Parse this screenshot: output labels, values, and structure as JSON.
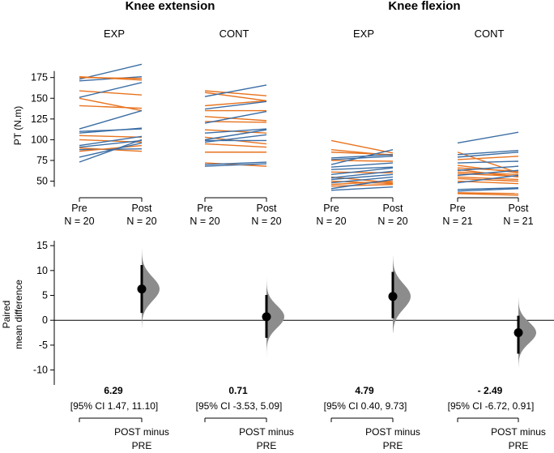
{
  "chart_data": {
    "type": "estimation-plot",
    "panels": [
      {
        "title": "Knee extension",
        "groups": [
          {
            "label": "EXP",
            "ticks": [
              "Pre",
              "Post"
            ],
            "n_labels": [
              "N = 20",
              "N = 20"
            ],
            "lines": [
              {
                "pre": 173,
                "post": 191,
                "color": "#3b6ea5"
              },
              {
                "pre": 171,
                "post": 176,
                "color": "#3b6ea5"
              },
              {
                "pre": 176,
                "post": 172,
                "color": "#e8731f"
              },
              {
                "pre": 175,
                "post": 174,
                "color": "#e8731f"
              },
              {
                "pre": 159,
                "post": 154,
                "color": "#e8731f"
              },
              {
                "pre": 151,
                "post": 169,
                "color": "#3b6ea5"
              },
              {
                "pre": 150,
                "post": 135,
                "color": "#e8731f"
              },
              {
                "pre": 141,
                "post": 138,
                "color": "#e8731f"
              },
              {
                "pre": 113,
                "post": 135,
                "color": "#3b6ea5"
              },
              {
                "pre": 110,
                "post": 113,
                "color": "#3b6ea5"
              },
              {
                "pre": 108,
                "post": 114,
                "color": "#3b6ea5"
              },
              {
                "pre": 105,
                "post": 103,
                "color": "#e8731f"
              },
              {
                "pre": 100,
                "post": 97,
                "color": "#e8731f"
              },
              {
                "pre": 93,
                "post": 104,
                "color": "#3b6ea5"
              },
              {
                "pre": 91,
                "post": 99,
                "color": "#3b6ea5"
              },
              {
                "pre": 90,
                "post": 86,
                "color": "#e8731f"
              },
              {
                "pre": 88,
                "post": 89,
                "color": "#3b6ea5"
              },
              {
                "pre": 86,
                "post": 93,
                "color": "#e8731f"
              },
              {
                "pre": 79,
                "post": 96,
                "color": "#3b6ea5"
              },
              {
                "pre": 73,
                "post": 100,
                "color": "#3b6ea5"
              }
            ]
          },
          {
            "label": "CONT",
            "ticks": [
              "Pre",
              "Post"
            ],
            "n_labels": [
              "N = 20",
              "N = 20"
            ],
            "lines": [
              {
                "pre": 159,
                "post": 153,
                "color": "#e8731f"
              },
              {
                "pre": 157,
                "post": 147,
                "color": "#e8731f"
              },
              {
                "pre": 152,
                "post": 166,
                "color": "#3b6ea5"
              },
              {
                "pre": 141,
                "post": 147,
                "color": "#e8731f"
              },
              {
                "pre": 137,
                "post": 146,
                "color": "#3b6ea5"
              },
              {
                "pre": 135,
                "post": 135,
                "color": "#e8731f"
              },
              {
                "pre": 128,
                "post": 123,
                "color": "#e8731f"
              },
              {
                "pre": 122,
                "post": 121,
                "color": "#e8731f"
              },
              {
                "pre": 120,
                "post": 134,
                "color": "#3b6ea5"
              },
              {
                "pre": 112,
                "post": 108,
                "color": "#e8731f"
              },
              {
                "pre": 108,
                "post": 113,
                "color": "#3b6ea5"
              },
              {
                "pre": 103,
                "post": 95,
                "color": "#e8731f"
              },
              {
                "pre": 100,
                "post": 112,
                "color": "#3b6ea5"
              },
              {
                "pre": 99,
                "post": 99,
                "color": "#3b6ea5"
              },
              {
                "pre": 97,
                "post": 106,
                "color": "#3b6ea5"
              },
              {
                "pre": 95,
                "post": 91,
                "color": "#e8731f"
              },
              {
                "pre": 85,
                "post": 85,
                "color": "#e8731f"
              },
              {
                "pre": 72,
                "post": 68,
                "color": "#e8731f"
              },
              {
                "pre": 70,
                "post": 73,
                "color": "#3b6ea5"
              },
              {
                "pre": 68,
                "post": 71,
                "color": "#3b6ea5"
              }
            ]
          }
        ]
      },
      {
        "title": "Knee flexion",
        "groups": [
          {
            "label": "EXP",
            "ticks": [
              "Pre",
              "Post"
            ],
            "n_labels": [
              "N = 20",
              "N = 20"
            ],
            "lines": [
              {
                "pre": 99,
                "post": 84,
                "color": "#e8731f"
              },
              {
                "pre": 88,
                "post": 81,
                "color": "#e8731f"
              },
              {
                "pre": 85,
                "post": 82,
                "color": "#e8731f"
              },
              {
                "pre": 78,
                "post": 82,
                "color": "#3b6ea5"
              },
              {
                "pre": 76,
                "post": 80,
                "color": "#3b6ea5"
              },
              {
                "pre": 75,
                "post": 74,
                "color": "#e8731f"
              },
              {
                "pre": 70,
                "post": 88,
                "color": "#3b6ea5"
              },
              {
                "pre": 67,
                "post": 72,
                "color": "#3b6ea5"
              },
              {
                "pre": 64,
                "post": 67,
                "color": "#3b6ea5"
              },
              {
                "pre": 61,
                "post": 60,
                "color": "#e8731f"
              },
              {
                "pre": 58,
                "post": 66,
                "color": "#3b6ea5"
              },
              {
                "pre": 55,
                "post": 48,
                "color": "#e8731f"
              },
              {
                "pre": 54,
                "post": 62,
                "color": "#3b6ea5"
              },
              {
                "pre": 52,
                "post": 58,
                "color": "#3b6ea5"
              },
              {
                "pre": 50,
                "post": 47,
                "color": "#e8731f"
              },
              {
                "pre": 48,
                "post": 55,
                "color": "#3b6ea5"
              },
              {
                "pre": 46,
                "post": 50,
                "color": "#e8731f"
              },
              {
                "pre": 44,
                "post": 46,
                "color": "#e8731f"
              },
              {
                "pre": 41,
                "post": 52,
                "color": "#3b6ea5"
              },
              {
                "pre": 39,
                "post": 43,
                "color": "#3b6ea5"
              }
            ]
          },
          {
            "label": "CONT",
            "ticks": [
              "Pre",
              "Post"
            ],
            "n_labels": [
              "N = 21",
              "N = 21"
            ],
            "lines": [
              {
                "pre": 96,
                "post": 109,
                "color": "#3b6ea5"
              },
              {
                "pre": 85,
                "post": 60,
                "color": "#e8731f"
              },
              {
                "pre": 82,
                "post": 87,
                "color": "#3b6ea5"
              },
              {
                "pre": 79,
                "post": 85,
                "color": "#3b6ea5"
              },
              {
                "pre": 76,
                "post": 80,
                "color": "#e8731f"
              },
              {
                "pre": 72,
                "post": 74,
                "color": "#3b6ea5"
              },
              {
                "pre": 69,
                "post": 60,
                "color": "#e8731f"
              },
              {
                "pre": 66,
                "post": 62,
                "color": "#e8731f"
              },
              {
                "pre": 64,
                "post": 55,
                "color": "#e8731f"
              },
              {
                "pre": 63,
                "post": 68,
                "color": "#3b6ea5"
              },
              {
                "pre": 61,
                "post": 58,
                "color": "#e8731f"
              },
              {
                "pre": 59,
                "post": 56,
                "color": "#e8731f"
              },
              {
                "pre": 57,
                "post": 63,
                "color": "#3b6ea5"
              },
              {
                "pre": 55,
                "post": 52,
                "color": "#e8731f"
              },
              {
                "pre": 53,
                "post": 50,
                "color": "#e8731f"
              },
              {
                "pre": 50,
                "post": 47,
                "color": "#e8731f"
              },
              {
                "pre": 48,
                "post": 57,
                "color": "#3b6ea5"
              },
              {
                "pre": 40,
                "post": 42,
                "color": "#3b6ea5"
              },
              {
                "pre": 38,
                "post": 41,
                "color": "#3b6ea5"
              },
              {
                "pre": 36,
                "post": 35,
                "color": "#e8731f"
              },
              {
                "pre": 35,
                "post": 33,
                "color": "#e8731f"
              }
            ]
          }
        ]
      }
    ],
    "top_axis": {
      "label": "PT (N.m)",
      "ticks": [
        50,
        75,
        100,
        125,
        150,
        175
      ],
      "ylim": [
        30,
        205
      ]
    },
    "bottom_axis": {
      "label_line1": "Paired",
      "label_line2": "mean difference",
      "ticks": [
        -10,
        -5,
        0,
        5,
        10,
        15
      ],
      "ylim": [
        -13,
        16
      ]
    },
    "effects": [
      {
        "estimate": 6.29,
        "estimate_label": "6.29",
        "ci_low": 1.47,
        "ci_high": 11.1,
        "ci_label": "[95% CI 1.47, 11.10]",
        "dist_min": -1.5,
        "dist_max": 14.5,
        "dist_sd": 2.4
      },
      {
        "estimate": 0.71,
        "estimate_label": "0.71",
        "ci_low": -3.53,
        "ci_high": 5.09,
        "ci_label": "[95% CI -3.53, 5.09]",
        "dist_min": -7.5,
        "dist_max": 8.5,
        "dist_sd": 2.2
      },
      {
        "estimate": 4.79,
        "estimate_label": "4.79",
        "ci_low": 0.4,
        "ci_high": 9.73,
        "ci_label": "[95% CI 0.40, 9.73]",
        "dist_min": -2.5,
        "dist_max": 13,
        "dist_sd": 2.5
      },
      {
        "estimate": -2.49,
        "estimate_label": "- 2.49",
        "ci_low": -6.72,
        "ci_high": 0.91,
        "ci_label": "[95% CI -6.72, 0.91]",
        "dist_min": -9.5,
        "dist_max": 4.5,
        "dist_sd": 2.1
      }
    ],
    "comparison_label_line1": "POST minus",
    "comparison_label_line2": "PRE"
  }
}
